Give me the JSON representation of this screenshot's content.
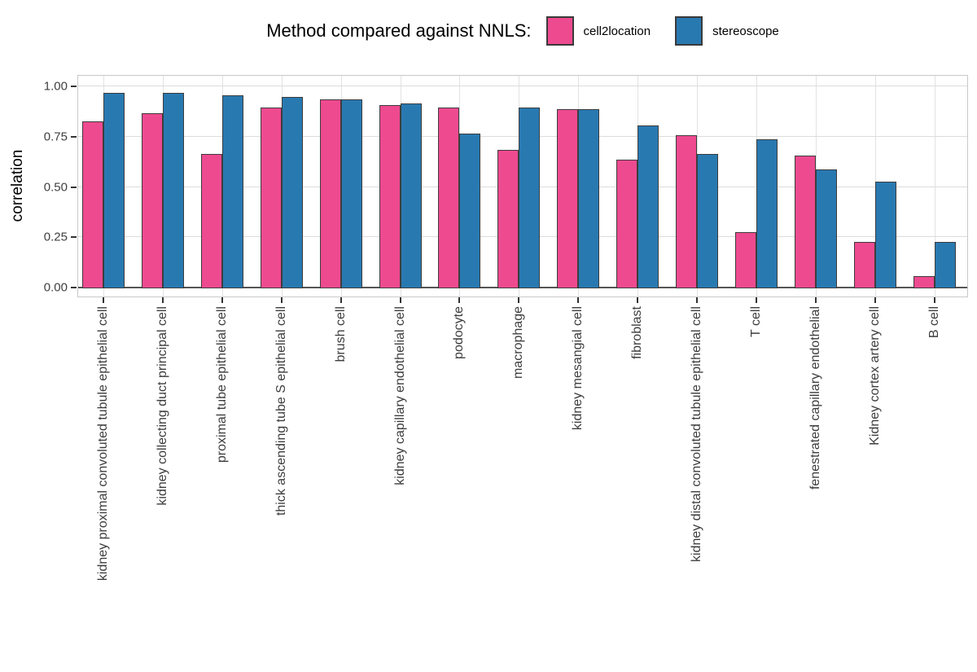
{
  "legend": {
    "title": "Method compared against NNLS:",
    "items": [
      {
        "label": "cell2location",
        "color": "#EE4A90"
      },
      {
        "label": "stereoscope",
        "color": "#2979B1"
      }
    ]
  },
  "chart_data": {
    "type": "bar",
    "title": "Method compared against NNLS:",
    "xlabel": "",
    "ylabel": "correlation",
    "ylim": [
      0,
      1
    ],
    "yticks": [
      0,
      0.25,
      0.5,
      0.75,
      1
    ],
    "ytick_labels": [
      "0.00",
      "0.25",
      "0.50",
      "0.75",
      "1.00"
    ],
    "grid": true,
    "legend_position": "top-center",
    "categories": [
      "kidney proximal convoluted tubule epithelial cell",
      "kidney collecting duct principal cell",
      "proximal tube epithelial cell",
      "thick ascending tube S epithelial cell",
      "brush cell",
      "kidney capillary endothelial cell",
      "podocyte",
      "macrophage",
      "kidney mesangial cell",
      "fibroblast",
      "kidney distal convoluted tubule epithelial cell",
      "T cell",
      "fenestrated capillary endothelial",
      "Kidney cortex artery cell",
      "B cell"
    ],
    "series": [
      {
        "name": "cell2location",
        "color": "#EE4A90",
        "values": [
          0.83,
          0.87,
          0.67,
          0.9,
          0.94,
          0.91,
          0.9,
          0.69,
          0.89,
          0.64,
          0.76,
          0.28,
          0.66,
          0.23,
          0.06
        ]
      },
      {
        "name": "stereoscope",
        "color": "#2979B1",
        "values": [
          0.97,
          0.97,
          0.96,
          0.95,
          0.94,
          0.92,
          0.77,
          0.9,
          0.89,
          0.81,
          0.67,
          0.74,
          0.59,
          0.53,
          0.23
        ]
      }
    ],
    "bar_edge_color": "#3d3d3d",
    "zero_line_color": "#555555",
    "gridline_color": "#e0e0e0"
  }
}
